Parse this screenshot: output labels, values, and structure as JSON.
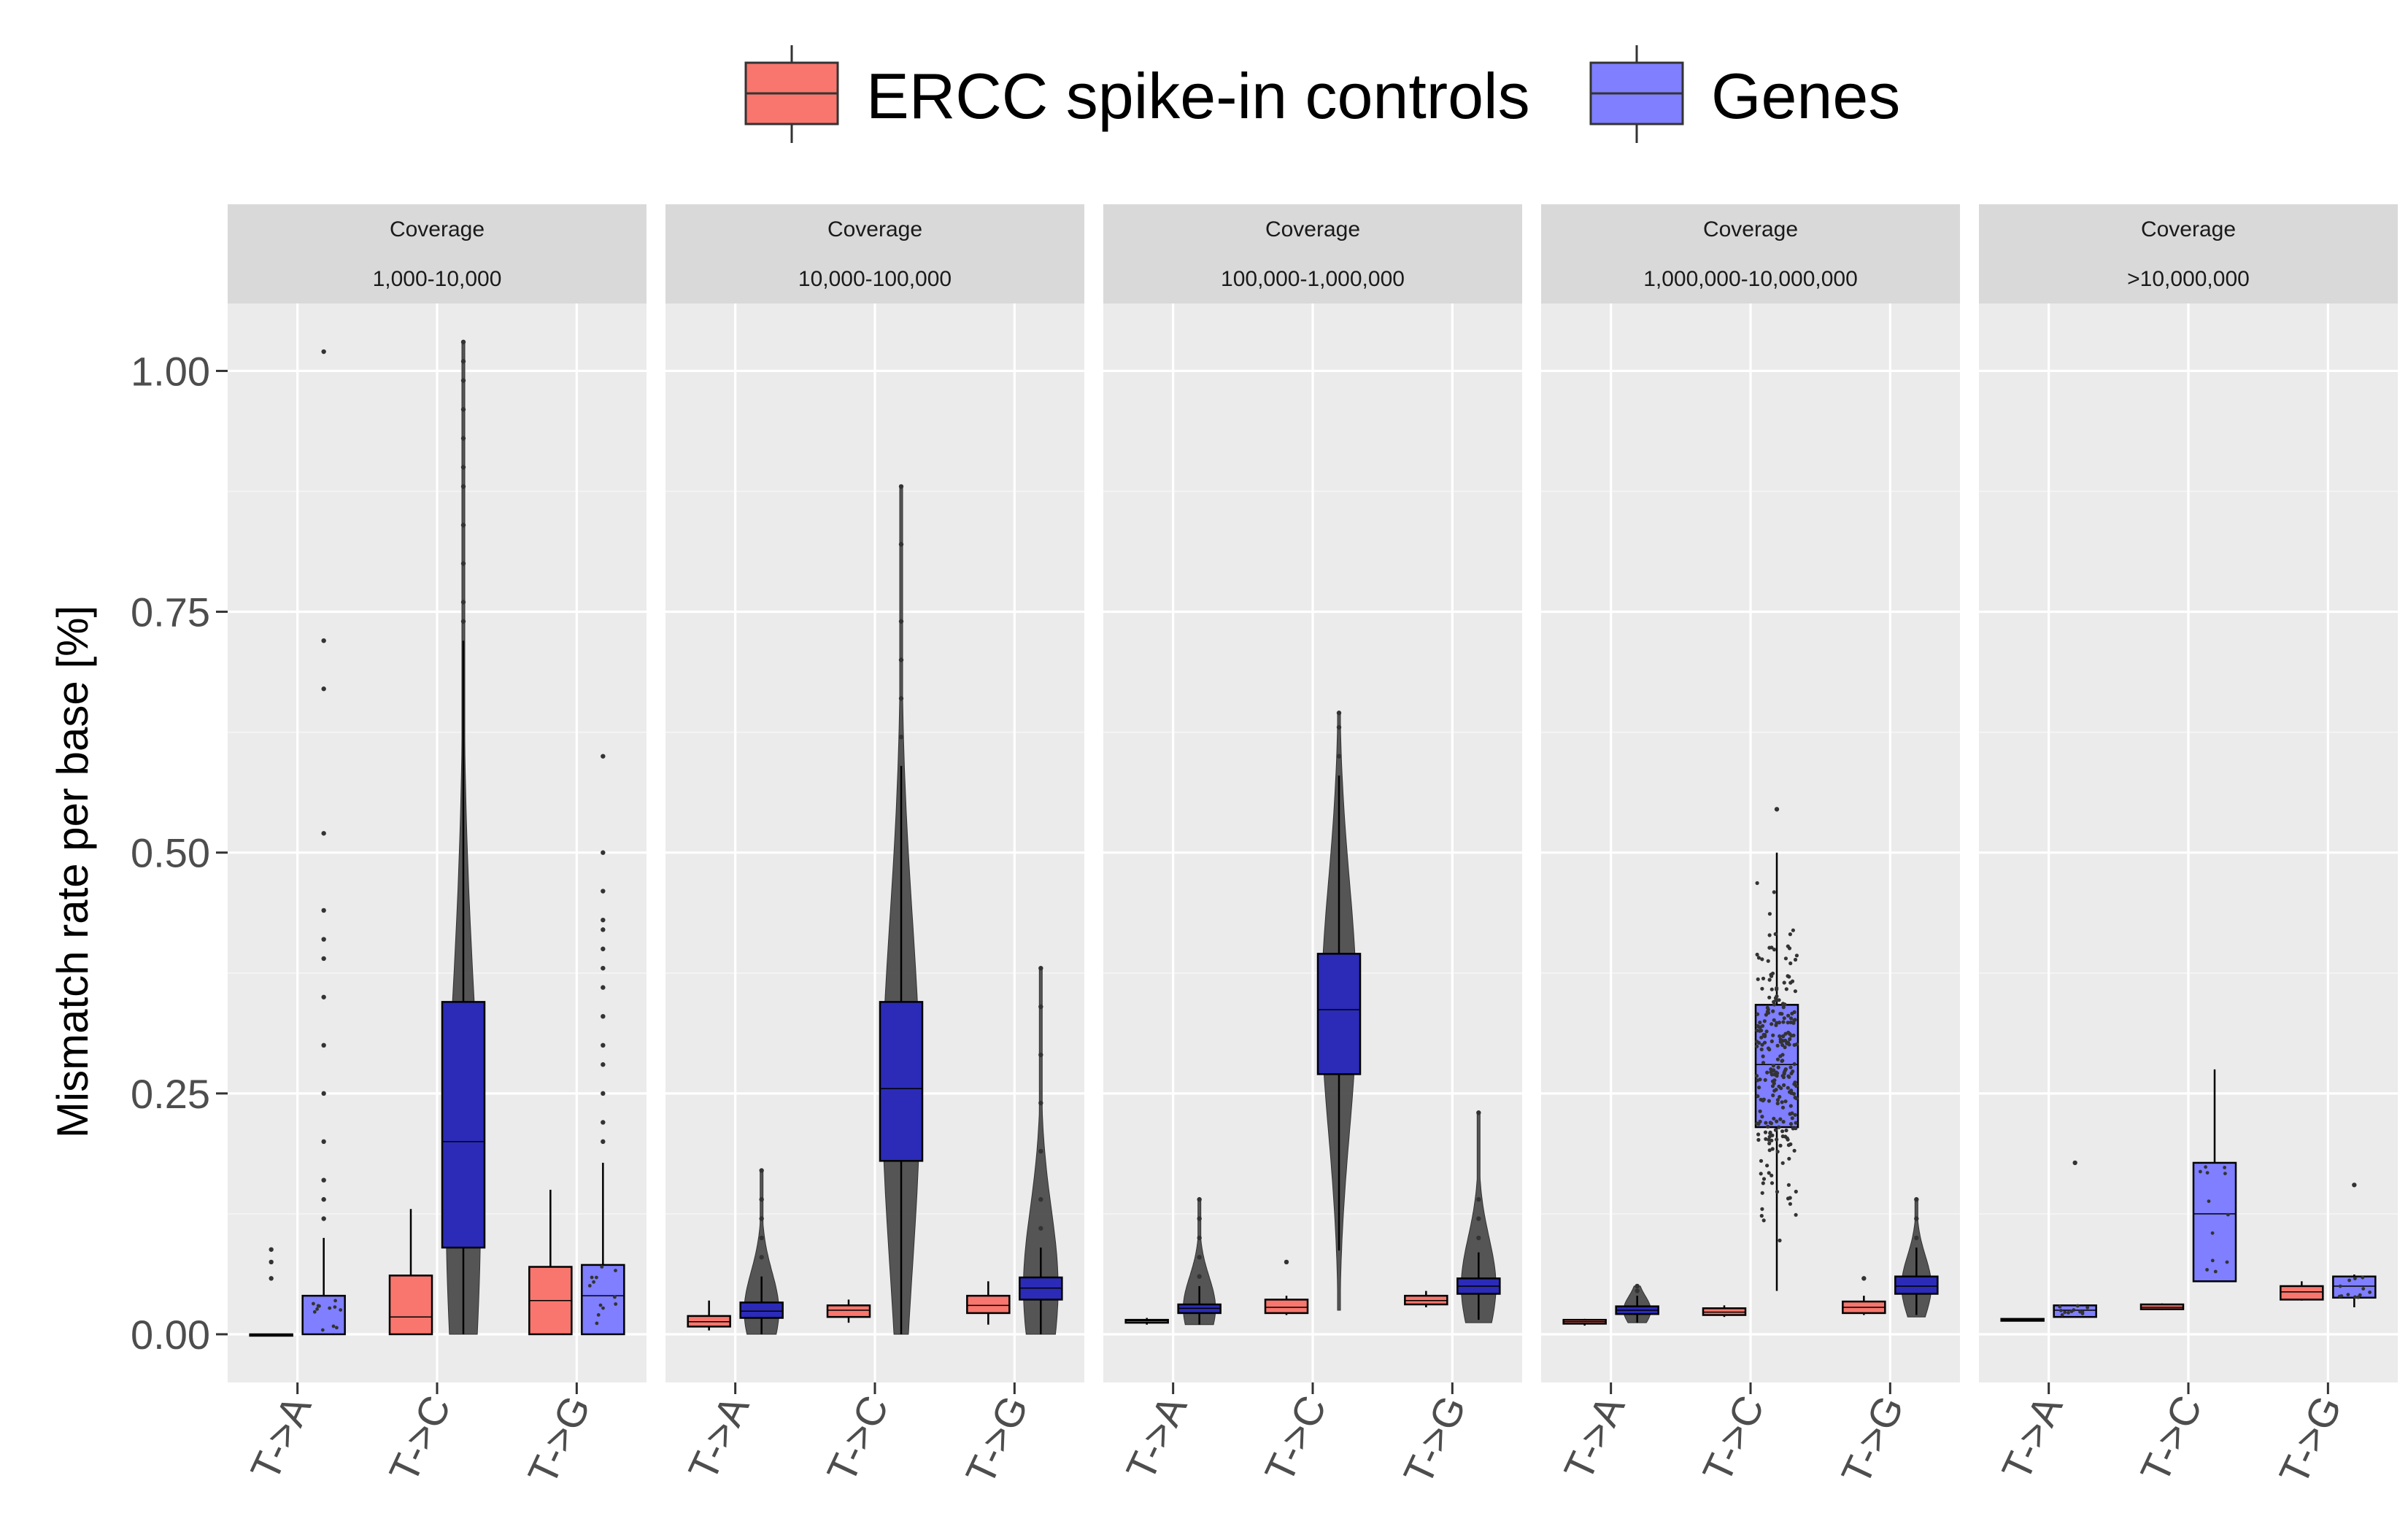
{
  "legend": {
    "items": [
      {
        "label": "ERCC spike-in controls",
        "color": "#f8766d"
      },
      {
        "label": "Genes",
        "color": "#7f7fff"
      }
    ]
  },
  "facet_header": "Coverage",
  "colors": {
    "ercc_fill": "#f8766d",
    "genes_fill_dense": "#2b2bb8",
    "genes_fill_light": "#7f7fff",
    "points": "#333333",
    "violin": "#4d4d4d",
    "panel_bg": "#ebebeb",
    "strip_bg": "#d9d9d9"
  },
  "chart_data": {
    "type": "box",
    "ylabel": "Mismatch rate per base [%]",
    "ylim": [
      -0.05,
      1.07
    ],
    "y_ticks": [
      0.0,
      0.25,
      0.5,
      0.75,
      1.0
    ],
    "y_tick_labels": [
      "0.00",
      "0.25",
      "0.50",
      "0.75",
      "1.00"
    ],
    "categories": [
      "T->A",
      "T->C",
      "T->G"
    ],
    "series": [
      {
        "name": "ERCC spike-in controls"
      },
      {
        "name": "Genes"
      }
    ],
    "grid": true,
    "legend_position": "top",
    "panels": [
      {
        "coverage": "1,000-10,000",
        "boxes": [
          {
            "category": "T->A",
            "series": "ERCC spike-in controls",
            "q1": 0.0,
            "median": 0.0,
            "q3": 0.0,
            "whisker_low": 0.0,
            "whisker_high": 0.0,
            "outliers": [
              0.058,
              0.075,
              0.088
            ]
          },
          {
            "category": "T->A",
            "series": "Genes",
            "q1": 0.0,
            "median": 0.0,
            "q3": 0.04,
            "whisker_low": 0.0,
            "whisker_high": 0.1,
            "outliers": [
              0.12,
              0.14,
              0.16,
              0.2,
              0.25,
              0.3,
              0.35,
              0.39,
              0.41,
              0.44,
              0.52,
              0.67,
              0.72,
              1.02
            ],
            "dense": false
          },
          {
            "category": "T->C",
            "series": "ERCC spike-in controls",
            "q1": 0.0,
            "median": 0.018,
            "q3": 0.061,
            "whisker_low": 0.0,
            "whisker_high": 0.13,
            "outliers": []
          },
          {
            "category": "T->C",
            "series": "Genes",
            "q1": 0.09,
            "median": 0.2,
            "q3": 0.345,
            "whisker_low": 0.0,
            "whisker_high": 0.72,
            "outliers": [
              0.74,
              0.76,
              0.8,
              0.84,
              0.88,
              0.9,
              0.93,
              0.96,
              0.99,
              1.01,
              1.03
            ],
            "dense": true,
            "violin": {
              "lo": 0.0,
              "hi": 1.03,
              "peak": 0.14,
              "width": 0.7
            }
          },
          {
            "category": "T->G",
            "series": "ERCC spike-in controls",
            "q1": 0.0,
            "median": 0.035,
            "q3": 0.07,
            "whisker_low": 0.0,
            "whisker_high": 0.15,
            "outliers": []
          },
          {
            "category": "T->G",
            "series": "Genes",
            "q1": 0.0,
            "median": 0.04,
            "q3": 0.072,
            "whisker_low": 0.0,
            "whisker_high": 0.178,
            "outliers": [
              0.2,
              0.22,
              0.25,
              0.28,
              0.3,
              0.33,
              0.36,
              0.38,
              0.4,
              0.42,
              0.43,
              0.46,
              0.5,
              0.6
            ],
            "dense": false
          }
        ]
      },
      {
        "coverage": "10,000-100,000",
        "boxes": [
          {
            "category": "T->A",
            "series": "ERCC spike-in controls",
            "q1": 0.008,
            "median": 0.013,
            "q3": 0.019,
            "whisker_low": 0.004,
            "whisker_high": 0.035,
            "outliers": []
          },
          {
            "category": "T->A",
            "series": "Genes",
            "q1": 0.017,
            "median": 0.024,
            "q3": 0.033,
            "whisker_low": 0.0,
            "whisker_high": 0.06,
            "outliers": [
              0.08,
              0.1,
              0.12,
              0.14,
              0.17
            ],
            "dense": true,
            "violin": {
              "lo": 0.0,
              "hi": 0.17,
              "peak": 0.024,
              "width": 0.7
            }
          },
          {
            "category": "T->C",
            "series": "ERCC spike-in controls",
            "q1": 0.018,
            "median": 0.025,
            "q3": 0.03,
            "whisker_low": 0.012,
            "whisker_high": 0.036,
            "outliers": []
          },
          {
            "category": "T->C",
            "series": "Genes",
            "q1": 0.18,
            "median": 0.255,
            "q3": 0.345,
            "whisker_low": 0.0,
            "whisker_high": 0.59,
            "outliers": [
              0.62,
              0.66,
              0.7,
              0.74,
              0.82,
              0.88
            ],
            "dense": true,
            "violin": {
              "lo": 0.0,
              "hi": 0.88,
              "peak": 0.25,
              "width": 0.75
            }
          },
          {
            "category": "T->G",
            "series": "ERCC spike-in controls",
            "q1": 0.022,
            "median": 0.03,
            "q3": 0.04,
            "whisker_low": 0.01,
            "whisker_high": 0.055,
            "outliers": []
          },
          {
            "category": "T->G",
            "series": "Genes",
            "q1": 0.036,
            "median": 0.048,
            "q3": 0.059,
            "whisker_low": 0.0,
            "whisker_high": 0.09,
            "outliers": [
              0.11,
              0.14,
              0.19,
              0.24,
              0.29,
              0.34,
              0.38
            ],
            "dense": true,
            "violin": {
              "lo": 0.0,
              "hi": 0.38,
              "peak": 0.048,
              "width": 0.7
            }
          }
        ]
      },
      {
        "coverage": "100,000-1,000,000",
        "boxes": [
          {
            "category": "T->A",
            "series": "ERCC spike-in controls",
            "q1": 0.012,
            "median": 0.014,
            "q3": 0.015,
            "whisker_low": 0.01,
            "whisker_high": 0.017,
            "outliers": []
          },
          {
            "category": "T->A",
            "series": "Genes",
            "q1": 0.022,
            "median": 0.027,
            "q3": 0.031,
            "whisker_low": 0.01,
            "whisker_high": 0.05,
            "outliers": [
              0.06,
              0.08,
              0.1,
              0.12,
              0.14
            ],
            "dense": true,
            "violin": {
              "lo": 0.01,
              "hi": 0.14,
              "peak": 0.027,
              "width": 0.65
            }
          },
          {
            "category": "T->C",
            "series": "ERCC spike-in controls",
            "q1": 0.022,
            "median": 0.028,
            "q3": 0.036,
            "whisker_low": 0.02,
            "whisker_high": 0.04,
            "outliers": [
              0.075
            ]
          },
          {
            "category": "T->C",
            "series": "Genes",
            "q1": 0.27,
            "median": 0.337,
            "q3": 0.395,
            "whisker_low": 0.087,
            "whisker_high": 0.58,
            "outliers": [
              0.6,
              0.63,
              0.645
            ],
            "dense": true,
            "violin": {
              "lo": 0.025,
              "hi": 0.645,
              "peak": 0.34,
              "width": 0.7
            }
          },
          {
            "category": "T->G",
            "series": "ERCC spike-in controls",
            "q1": 0.031,
            "median": 0.035,
            "q3": 0.04,
            "whisker_low": 0.028,
            "whisker_high": 0.045,
            "outliers": []
          },
          {
            "category": "T->G",
            "series": "Genes",
            "q1": 0.042,
            "median": 0.05,
            "q3": 0.058,
            "whisker_low": 0.015,
            "whisker_high": 0.085,
            "outliers": [
              0.1,
              0.12,
              0.14,
              0.23
            ],
            "dense": true,
            "violin": {
              "lo": 0.012,
              "hi": 0.23,
              "peak": 0.05,
              "width": 0.7
            }
          }
        ]
      },
      {
        "coverage": "1,000,000-10,000,000",
        "boxes": [
          {
            "category": "T->A",
            "series": "ERCC spike-in controls",
            "q1": 0.011,
            "median": 0.013,
            "q3": 0.015,
            "whisker_low": 0.009,
            "whisker_high": 0.016,
            "outliers": []
          },
          {
            "category": "T->A",
            "series": "Genes",
            "q1": 0.021,
            "median": 0.025,
            "q3": 0.029,
            "whisker_low": 0.012,
            "whisker_high": 0.04,
            "outliers": [
              0.045,
              0.05
            ],
            "dense": true,
            "violin": {
              "lo": 0.012,
              "hi": 0.05,
              "peak": 0.025,
              "width": 0.55
            }
          },
          {
            "category": "T->C",
            "series": "ERCC spike-in controls",
            "q1": 0.02,
            "median": 0.023,
            "q3": 0.027,
            "whisker_low": 0.018,
            "whisker_high": 0.03,
            "outliers": []
          },
          {
            "category": "T->C",
            "series": "Genes",
            "q1": 0.215,
            "median": 0.28,
            "q3": 0.342,
            "whisker_low": 0.045,
            "whisker_high": 0.5,
            "outliers": [
              0.545
            ],
            "dense": false,
            "jitter": {
              "lo": 0.045,
              "hi": 0.5,
              "center": 0.28,
              "count": 260
            }
          },
          {
            "category": "T->G",
            "series": "ERCC spike-in controls",
            "q1": 0.022,
            "median": 0.028,
            "q3": 0.034,
            "whisker_low": 0.02,
            "whisker_high": 0.04,
            "outliers": [
              0.058
            ]
          },
          {
            "category": "T->G",
            "series": "Genes",
            "q1": 0.042,
            "median": 0.05,
            "q3": 0.06,
            "whisker_low": 0.02,
            "whisker_high": 0.09,
            "outliers": [
              0.1,
              0.12,
              0.14
            ],
            "dense": true,
            "violin": {
              "lo": 0.018,
              "hi": 0.14,
              "peak": 0.05,
              "width": 0.6
            }
          }
        ]
      },
      {
        "coverage": ">10,000,000",
        "boxes": [
          {
            "category": "T->A",
            "series": "ERCC spike-in controls",
            "q1": 0.014,
            "median": 0.015,
            "q3": 0.016,
            "whisker_low": 0.014,
            "whisker_high": 0.016,
            "outliers": []
          },
          {
            "category": "T->A",
            "series": "Genes",
            "q1": 0.018,
            "median": 0.025,
            "q3": 0.03,
            "whisker_low": 0.018,
            "whisker_high": 0.03,
            "outliers": [
              0.178
            ],
            "dense": false
          },
          {
            "category": "T->C",
            "series": "ERCC spike-in controls",
            "q1": 0.026,
            "median": 0.028,
            "q3": 0.031,
            "whisker_low": 0.025,
            "whisker_high": 0.032,
            "outliers": []
          },
          {
            "category": "T->C",
            "series": "Genes",
            "q1": 0.055,
            "median": 0.125,
            "q3": 0.178,
            "whisker_low": 0.055,
            "whisker_high": 0.275,
            "outliers": [],
            "dense": false
          },
          {
            "category": "T->G",
            "series": "ERCC spike-in controls",
            "q1": 0.036,
            "median": 0.044,
            "q3": 0.05,
            "whisker_low": 0.035,
            "whisker_high": 0.055,
            "outliers": []
          },
          {
            "category": "T->G",
            "series": "Genes",
            "q1": 0.038,
            "median": 0.05,
            "q3": 0.06,
            "whisker_low": 0.028,
            "whisker_high": 0.062,
            "outliers": [
              0.155
            ],
            "dense": false
          }
        ]
      }
    ]
  }
}
